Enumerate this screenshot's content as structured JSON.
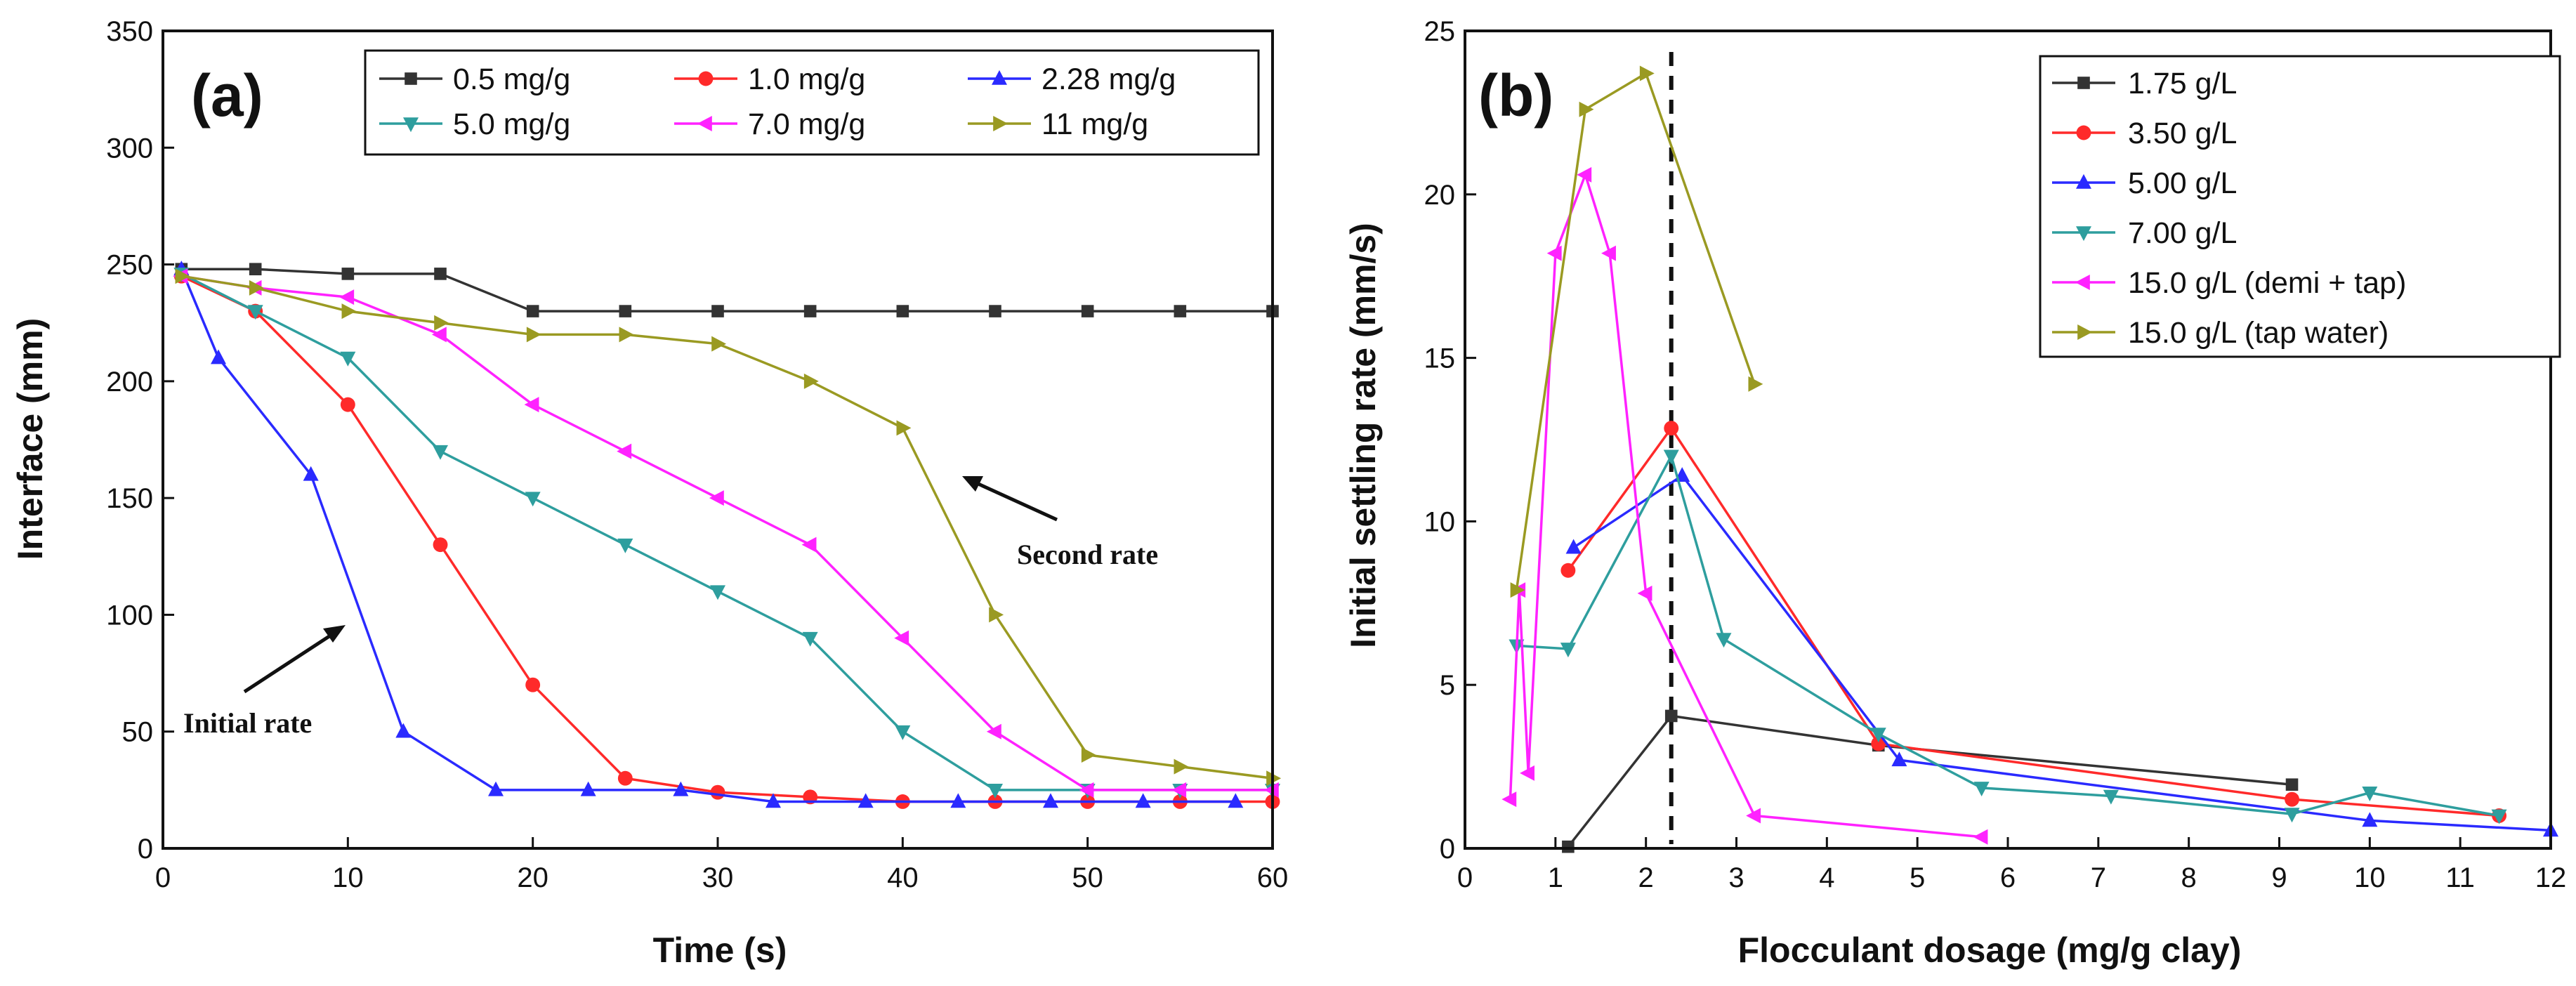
{
  "chart_data": [
    {
      "type": "line",
      "panel_label": "(a)",
      "xlabel": "Time (s)",
      "ylabel": "Interface (mm)",
      "xlim": [
        0,
        60
      ],
      "ylim": [
        0,
        350
      ],
      "xticks": [
        0,
        10,
        20,
        30,
        40,
        50,
        60
      ],
      "yticks": [
        0,
        50,
        100,
        150,
        200,
        250,
        300,
        350
      ],
      "legend_position": "top-right",
      "series": [
        {
          "name": "0.5 mg/g",
          "color": "#333333",
          "marker": "square",
          "x": [
            1,
            5,
            10,
            15,
            20,
            25,
            30,
            35,
            40,
            45,
            50,
            55,
            60
          ],
          "y": [
            248,
            248,
            246,
            246,
            230,
            230,
            230,
            230,
            230,
            230,
            230,
            230,
            230
          ]
        },
        {
          "name": "1.0 mg/g",
          "color": "#ff2a2a",
          "marker": "circle",
          "x": [
            1,
            5,
            10,
            15,
            20,
            25,
            30,
            35,
            40,
            45,
            50,
            55,
            60
          ],
          "y": [
            245,
            230,
            190,
            130,
            70,
            30,
            24,
            22,
            20,
            20,
            20,
            20,
            20
          ]
        },
        {
          "name": "2.28 mg/g",
          "color": "#2a2aff",
          "marker": "triangle-up",
          "x": [
            1,
            3,
            8,
            13,
            18,
            23,
            28,
            33,
            38,
            43,
            48,
            53,
            58
          ],
          "y": [
            248,
            210,
            160,
            50,
            25,
            25,
            25,
            20,
            20,
            20,
            20,
            20,
            20
          ]
        },
        {
          "name": "5.0 mg/g",
          "color": "#2e9e9e",
          "marker": "triangle-down",
          "x": [
            1,
            5,
            10,
            15,
            20,
            25,
            30,
            35,
            40,
            45,
            50,
            55,
            60
          ],
          "y": [
            246,
            230,
            210,
            170,
            150,
            130,
            110,
            90,
            50,
            25,
            25,
            25,
            25
          ]
        },
        {
          "name": "7.0 mg/g",
          "color": "#ff22ff",
          "marker": "triangle-left",
          "x": [
            1,
            5,
            10,
            15,
            20,
            25,
            30,
            35,
            40,
            45,
            50,
            55,
            60
          ],
          "y": [
            245,
            240,
            236,
            220,
            190,
            170,
            150,
            130,
            90,
            50,
            25,
            25,
            25
          ]
        },
        {
          "name": "11 mg/g",
          "color": "#9a9a22",
          "marker": "triangle-right",
          "x": [
            1,
            5,
            10,
            15,
            20,
            25,
            30,
            35,
            40,
            45,
            50,
            55,
            60
          ],
          "y": [
            245,
            240,
            230,
            225,
            220,
            220,
            216,
            200,
            180,
            100,
            40,
            35,
            30
          ]
        }
      ],
      "annotations": [
        {
          "text": "Second rate",
          "x": 46,
          "y": 123,
          "arrow_from": [
            47.5,
            170
          ],
          "arrow_to": [
            42.5,
            160
          ]
        },
        {
          "text": "Initial rate",
          "x": 1,
          "y": 48,
          "arrow_from": [
            4.5,
            67
          ],
          "arrow_to": [
            10,
            95
          ]
        }
      ]
    },
    {
      "type": "line",
      "panel_label": "(b)",
      "xlabel": "Flocculant dosage (mg/g clay)",
      "ylabel": "Initial settling rate (mm/s)",
      "xlim": [
        0,
        12
      ],
      "ylim": [
        0,
        25
      ],
      "xticks": [
        0,
        1,
        2,
        3,
        4,
        5,
        6,
        7,
        8,
        9,
        10,
        11,
        12
      ],
      "yticks": [
        0,
        5,
        10,
        15,
        20,
        25
      ],
      "vline_x": 2.28,
      "legend_position": "top-right",
      "series": [
        {
          "name": "1.75 g/L",
          "color": "#333333",
          "marker": "square",
          "x": [
            1.14,
            2.28,
            4.57,
            9.14
          ],
          "y": [
            0.05,
            4.05,
            3.15,
            1.95
          ]
        },
        {
          "name": "3.50 g/L",
          "color": "#ff2a2a",
          "marker": "circle",
          "x": [
            1.14,
            2.28,
            4.57,
            9.14,
            11.43
          ],
          "y": [
            8.5,
            12.85,
            3.2,
            1.5,
            1.0
          ]
        },
        {
          "name": "5.00 g/L",
          "color": "#2a2aff",
          "marker": "triangle-up",
          "x": [
            1.2,
            2.4,
            4.8,
            10.0,
            12.0
          ],
          "y": [
            9.2,
            11.4,
            2.7,
            0.85,
            0.55
          ]
        },
        {
          "name": "7.00 g/L",
          "color": "#2e9e9e",
          "marker": "triangle-down",
          "x": [
            0.57,
            1.14,
            2.28,
            2.86,
            4.57,
            5.71,
            7.14,
            9.14,
            10.0,
            11.43
          ],
          "y": [
            6.2,
            6.1,
            12.0,
            6.4,
            3.5,
            1.85,
            1.6,
            1.05,
            1.7,
            1.0
          ]
        },
        {
          "name": "15.0 g/L (demi + tap)",
          "color": "#ff22ff",
          "marker": "triangle-left",
          "x": [
            0.5,
            0.6,
            0.7,
            1.0,
            1.33,
            1.6,
            2.0,
            3.2,
            5.71
          ],
          "y": [
            1.5,
            7.9,
            2.3,
            18.2,
            20.6,
            18.2,
            7.8,
            1.0,
            0.35
          ]
        },
        {
          "name": "15.0 g/L (tap water)",
          "color": "#9a9a22",
          "marker": "triangle-right",
          "x": [
            0.57,
            1.33,
            2.0,
            3.2
          ],
          "y": [
            7.9,
            22.6,
            23.7,
            14.2
          ]
        }
      ]
    }
  ]
}
